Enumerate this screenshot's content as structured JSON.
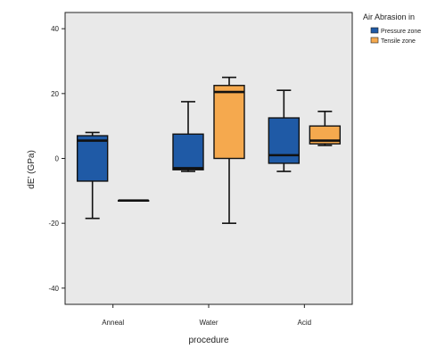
{
  "chart_data": {
    "type": "boxplot",
    "xlabel": "procedure",
    "ylabel": "dE' (GPa)",
    "ylim": [
      -45,
      45
    ],
    "yticks": [
      -40,
      -20,
      0,
      20,
      40
    ],
    "grid": false,
    "legend_placement": "top-right",
    "legend": {
      "title": "Air Abrasion in",
      "entries": [
        {
          "label": "Pressure zone",
          "color": "#1f5aa6"
        },
        {
          "label": "Tensile zone",
          "color": "#f5a94e"
        }
      ]
    },
    "categories": [
      "Anneal",
      "Water",
      "Acid"
    ],
    "series": [
      {
        "name": "Pressure zone",
        "color": "#1f5aa6",
        "boxes": [
          {
            "category": "Anneal",
            "min": -18.5,
            "q1": -7,
            "median": 5.5,
            "q3": 7,
            "max": 8
          },
          {
            "category": "Water",
            "min": -4,
            "q1": -3.5,
            "median": -3,
            "q3": 7.5,
            "max": 17.5
          },
          {
            "category": "Acid",
            "min": -4,
            "q1": -1.5,
            "median": 1,
            "q3": 12.5,
            "max": 21
          }
        ]
      },
      {
        "name": "Tensile zone",
        "color": "#f5a94e",
        "boxes": [
          {
            "category": "Anneal",
            "min": -13,
            "q1": -13,
            "median": -13,
            "q3": -13,
            "max": -13
          },
          {
            "category": "Water",
            "min": -20,
            "q1": 0,
            "median": 20.5,
            "q3": 22.5,
            "max": 25
          },
          {
            "category": "Acid",
            "min": 4,
            "q1": 4.5,
            "median": 5.5,
            "q3": 10,
            "max": 14.5
          }
        ]
      }
    ]
  }
}
